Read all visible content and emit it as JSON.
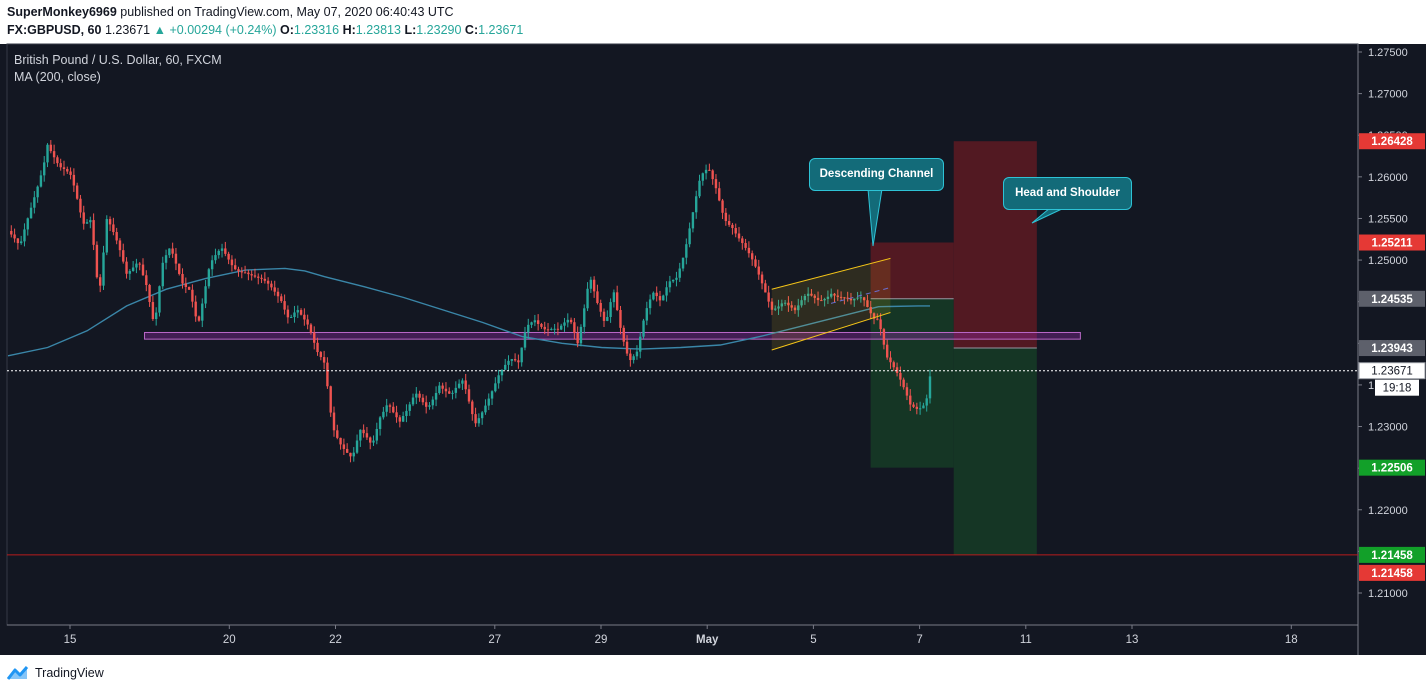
{
  "header": {
    "user": "SuperMonkey6969",
    "published_text": "published on TradingView.com, May 07, 2020 06:40:43 UTC",
    "symbol": "FX:GBPUSD, 60",
    "last": "1.23671",
    "change": "+0.00294 (+0.24%)",
    "open_label": "O:",
    "open": "1.23316",
    "high_label": "H:",
    "high": "1.23813",
    "low_label": "L:",
    "low": "1.23290",
    "close_label": "C:",
    "close": "1.23671"
  },
  "legend": {
    "title": "British Pound / U.S. Dollar, 60, FXCM",
    "indicator": "MA (200, close)"
  },
  "annotations": {
    "channel": "Descending Channel",
    "hs": "Head and Shoulder"
  },
  "footer": {
    "brand": "TradingView"
  },
  "colors": {
    "background": "#131722",
    "up": "#26a69a",
    "down": "#ef5350",
    "ma": "#3a86a8",
    "support_zone": "#9c27b0",
    "channel": "#f5c518",
    "loss_zone": "#5a1a22",
    "profit_zone": "#163a26",
    "stop_label": "#e53935",
    "target_label": "#12a029"
  },
  "chart_data": {
    "type": "candlestick",
    "symbol": "GBPUSD",
    "timeframe": "60",
    "y_axis": {
      "ylim": [
        1.205,
        1.2775
      ],
      "ticks": [
        "1.27500",
        "1.27000",
        "1.26500",
        "1.26000",
        "1.25500",
        "1.25000",
        "1.24500",
        "1.24000",
        "1.23500",
        "1.23000",
        "1.22500",
        "1.22000",
        "1.21500",
        "1.21000"
      ]
    },
    "x_axis": {
      "ticks": [
        "15",
        "20",
        "22",
        "27",
        "29",
        "May",
        "5",
        "7",
        "11",
        "13",
        "18"
      ]
    },
    "last_price": 1.23671,
    "countdown": "19:18",
    "price_labels": [
      {
        "value": "1.26428",
        "role": "stop-2"
      },
      {
        "value": "1.25211",
        "role": "stop-1"
      },
      {
        "value": "1.24535",
        "role": "entry-1"
      },
      {
        "value": "1.23943",
        "role": "entry-2"
      },
      {
        "value": "1.22506",
        "role": "target-1"
      },
      {
        "value": "1.21458",
        "role": "target-2"
      },
      {
        "value": "1.21458",
        "role": "horizontal-line"
      }
    ],
    "price_path_close": [
      [
        14.0,
        1.2535
      ],
      [
        14.3,
        1.251
      ],
      [
        14.6,
        1.2565
      ],
      [
        14.9,
        1.262
      ],
      [
        15.0,
        1.2645
      ],
      [
        15.3,
        1.261
      ],
      [
        15.6,
        1.2595
      ],
      [
        15.9,
        1.2545
      ],
      [
        16.1,
        1.2555
      ],
      [
        16.3,
        1.246
      ],
      [
        16.5,
        1.255
      ],
      [
        16.8,
        1.251
      ],
      [
        17.0,
        1.248
      ],
      [
        17.3,
        1.2505
      ],
      [
        17.5,
        1.2475
      ],
      [
        17.7,
        1.242
      ],
      [
        17.9,
        1.249
      ],
      [
        18.1,
        1.251
      ],
      [
        18.4,
        1.2475
      ],
      [
        18.6,
        1.247
      ],
      [
        18.8,
        1.2425
      ],
      [
        19.1,
        1.249
      ],
      [
        19.4,
        1.251
      ],
      [
        19.7,
        1.2495
      ],
      [
        20.0,
        1.249
      ],
      [
        20.3,
        1.2475
      ],
      [
        20.6,
        1.2465
      ],
      [
        20.9,
        1.2455
      ],
      [
        21.1,
        1.2435
      ],
      [
        21.3,
        1.2445
      ],
      [
        21.6,
        1.2415
      ],
      [
        21.8,
        1.2385
      ],
      [
        22.0,
        1.2375
      ],
      [
        22.2,
        1.2305
      ],
      [
        22.4,
        1.2285
      ],
      [
        22.7,
        1.226
      ],
      [
        22.9,
        1.229
      ],
      [
        23.2,
        1.2275
      ],
      [
        23.4,
        1.2315
      ],
      [
        23.6,
        1.2335
      ],
      [
        23.9,
        1.2305
      ],
      [
        24.1,
        1.2315
      ],
      [
        24.3,
        1.2335
      ],
      [
        24.6,
        1.2325
      ],
      [
        24.9,
        1.2355
      ],
      [
        25.2,
        1.2335
      ],
      [
        25.5,
        1.235
      ],
      [
        25.8,
        1.2305
      ],
      [
        26.1,
        1.2335
      ],
      [
        26.4,
        1.236
      ],
      [
        26.7,
        1.2375
      ],
      [
        26.9,
        1.2375
      ],
      [
        27.1,
        1.2425
      ],
      [
        27.3,
        1.2435
      ],
      [
        27.6,
        1.2415
      ],
      [
        27.9,
        1.241
      ],
      [
        28.2,
        1.243
      ],
      [
        28.4,
        1.2405
      ],
      [
        28.7,
        1.2485
      ],
      [
        28.9,
        1.2445
      ],
      [
        29.1,
        1.2415
      ],
      [
        29.3,
        1.246
      ],
      [
        29.5,
        1.2415
      ],
      [
        29.7,
        1.2385
      ],
      [
        29.9,
        1.2395
      ],
      [
        30.1,
        1.2435
      ],
      [
        30.3,
        1.2455
      ],
      [
        30.5,
        1.2445
      ],
      [
        30.7,
        1.2475
      ],
      [
        30.9,
        1.2485
      ],
      [
        31.1,
        1.2515
      ],
      [
        31.3,
        1.2555
      ],
      [
        31.5,
        1.2595
      ],
      [
        31.7,
        1.2605
      ],
      [
        31.9,
        1.2585
      ],
      [
        32.1,
        1.2555
      ],
      [
        32.3,
        1.2545
      ],
      [
        32.5,
        1.2525
      ],
      [
        32.7,
        1.2505
      ],
      [
        32.9,
        1.2485
      ],
      [
        33.1,
        1.2465
      ],
      [
        33.3,
        1.2445
      ],
      [
        33.6,
        1.2455
      ],
      [
        33.9,
        1.2435
      ],
      [
        34.2,
        1.2455
      ],
      [
        34.5,
        1.2455
      ],
      [
        34.8,
        1.2465
      ],
      [
        35.0,
        1.2455
      ],
      [
        35.3,
        1.2445
      ],
      [
        35.6,
        1.2455
      ],
      [
        35.9,
        1.2435
      ],
      [
        36.0,
        1.2435
      ],
      [
        36.2,
        1.2385
      ],
      [
        36.4,
        1.2365
      ],
      [
        36.6,
        1.2345
      ],
      [
        36.8,
        1.2325
      ],
      [
        37.0,
        1.2325
      ],
      [
        37.2,
        1.2335
      ],
      [
        37.3,
        1.2365
      ]
    ],
    "ma_200_path": [
      [
        14.0,
        1.2385
      ],
      [
        15.0,
        1.2395
      ],
      [
        16.0,
        1.2415
      ],
      [
        17.0,
        1.2445
      ],
      [
        18.0,
        1.2465
      ],
      [
        19.0,
        1.2478
      ],
      [
        20.0,
        1.2488
      ],
      [
        21.0,
        1.249
      ],
      [
        21.5,
        1.2487
      ],
      [
        22.0,
        1.248
      ],
      [
        23.0,
        1.2468
      ],
      [
        24.0,
        1.2455
      ],
      [
        25.0,
        1.244
      ],
      [
        26.0,
        1.2425
      ],
      [
        27.0,
        1.2408
      ],
      [
        28.0,
        1.24
      ],
      [
        29.0,
        1.2395
      ],
      [
        30.0,
        1.2393
      ],
      [
        31.0,
        1.2395
      ],
      [
        32.0,
        1.2398
      ],
      [
        33.0,
        1.2408
      ],
      [
        34.0,
        1.242
      ],
      [
        35.0,
        1.2432
      ],
      [
        36.0,
        1.2444
      ],
      [
        37.0,
        1.2445
      ],
      [
        37.3,
        1.2445
      ]
    ],
    "support_zone": {
      "y_top": 1.2413,
      "y_bottom": 1.2405,
      "x_start": 17.45,
      "x_end": 41.1
    },
    "descending_channel": {
      "upper": [
        [
          33.3,
          1.2465
        ],
        [
          36.3,
          1.2502
        ]
      ],
      "lower": [
        [
          33.3,
          1.2392
        ],
        [
          36.3,
          1.2437
        ]
      ],
      "mid": [
        [
          34.8,
          1.2448
        ],
        [
          36.3,
          1.2467
        ]
      ]
    },
    "positions": [
      {
        "type": "short",
        "x_start": 35.8,
        "x_end": 37.9,
        "entry": 1.24535,
        "stop": 1.25211,
        "target": 1.22506
      },
      {
        "type": "short",
        "x_start": 37.9,
        "x_end": 40.0,
        "entry": 1.23943,
        "stop": 1.26428,
        "target": 1.21458
      }
    ],
    "horizontal_line": {
      "value": 1.21458,
      "color": "#b71c1c"
    }
  }
}
